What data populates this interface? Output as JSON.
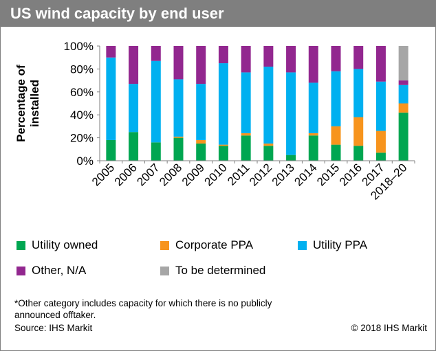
{
  "header": {
    "title": "US wind capacity by end user"
  },
  "footer": {
    "note": "*Other category includes capacity for which there is no publicly announced offtaker.",
    "source": "Source: IHS Markit",
    "copyright": "© 2018 IHS Markit"
  },
  "chart_data": {
    "type": "bar",
    "stacked": true,
    "normalized_percent": true,
    "ylabel": "Percentage of installed",
    "ylim": [
      0,
      100
    ],
    "yticks": [
      "0%",
      "20%",
      "40%",
      "60%",
      "80%",
      "100%"
    ],
    "categories": [
      "2005",
      "2006",
      "2007",
      "2008",
      "2009",
      "2010",
      "2011",
      "2012",
      "2013",
      "2014",
      "2015",
      "2016",
      "2017",
      "2018–20"
    ],
    "series": [
      {
        "name": "Utility owned",
        "color": "#00a651",
        "values": [
          18,
          25,
          16,
          20,
          15,
          13,
          22,
          13,
          5,
          22,
          14,
          13,
          7,
          42
        ]
      },
      {
        "name": "Corporate PPA",
        "color": "#f7941d",
        "values": [
          0,
          0,
          0,
          1,
          3,
          1,
          2,
          2,
          0,
          2,
          16,
          25,
          19,
          8
        ]
      },
      {
        "name": "Utility PPA",
        "color": "#00b0f0",
        "values": [
          72,
          42,
          71,
          50,
          49,
          71,
          53,
          67,
          72,
          44,
          48,
          42,
          43,
          16
        ]
      },
      {
        "name": "Other, N/A",
        "color": "#92278f",
        "values": [
          10,
          33,
          13,
          29,
          33,
          15,
          23,
          18,
          23,
          32,
          22,
          20,
          31,
          4
        ]
      },
      {
        "name": "To be determined",
        "color": "#a6a6a6",
        "values": [
          0,
          0,
          0,
          0,
          0,
          0,
          0,
          0,
          0,
          0,
          0,
          0,
          0,
          30
        ]
      }
    ],
    "legend_position": "bottom",
    "grid": false
  }
}
